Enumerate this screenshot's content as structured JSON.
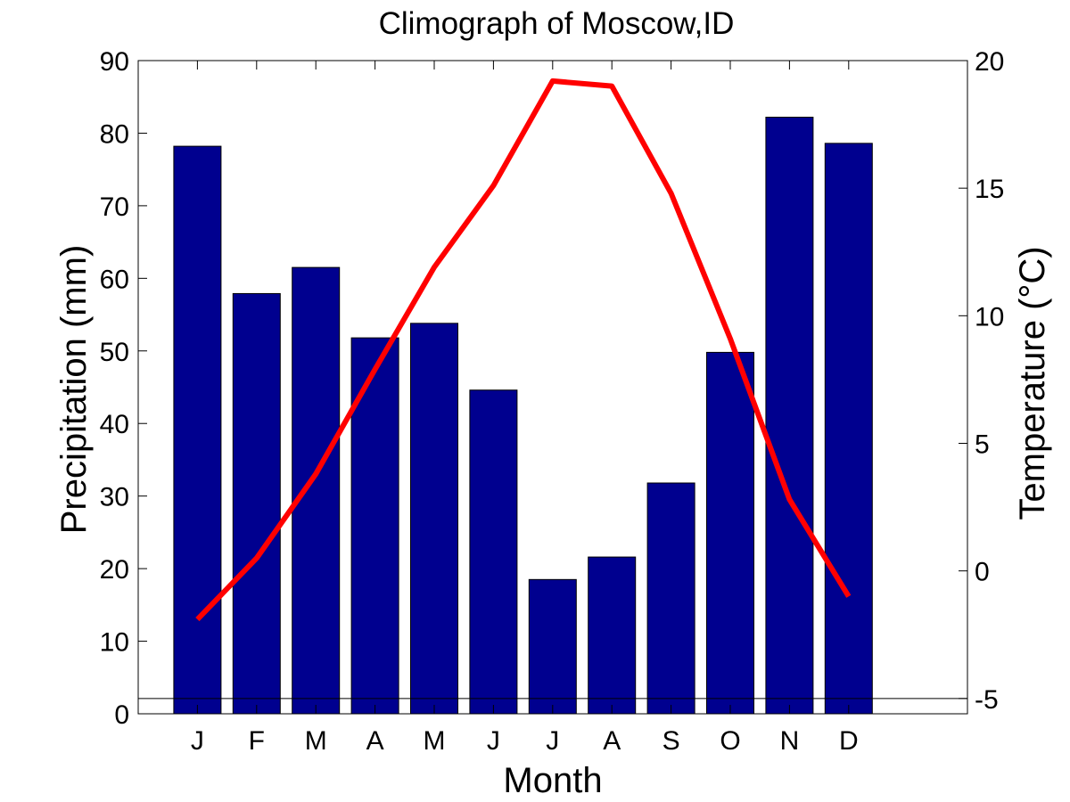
{
  "chart_data": {
    "type": "bar",
    "title": "Climograph of Moscow,ID",
    "xlabel": "Month",
    "ylabel": "Precipitation (mm)",
    "y2label": "Temperature (°C)",
    "categories": [
      "J",
      "F",
      "M",
      "A",
      "M",
      "J",
      "J",
      "A",
      "S",
      "O",
      "N",
      "D"
    ],
    "series": [
      {
        "type": "bar",
        "axis": "left",
        "values": [
          78.2,
          57.9,
          61.5,
          51.8,
          53.8,
          44.6,
          18.5,
          21.6,
          31.8,
          49.8,
          82.2,
          78.6
        ],
        "color": "#00008f"
      },
      {
        "type": "line",
        "axis": "right",
        "values": [
          -1.9,
          0.5,
          3.8,
          7.9,
          11.9,
          15.1,
          19.2,
          19.0,
          14.8,
          9.1,
          2.8,
          -1.0
        ],
        "color": "#ff0000"
      }
    ],
    "ylim": [
      0,
      90
    ],
    "yticks": [
      0,
      10,
      20,
      30,
      40,
      50,
      60,
      70,
      80,
      90
    ],
    "y2lim": [
      -5.6,
      20
    ],
    "y2ticks": [
      -5,
      0,
      5,
      10,
      15,
      20
    ],
    "y2_reference_line": -5,
    "grid": false,
    "legend": "none"
  }
}
